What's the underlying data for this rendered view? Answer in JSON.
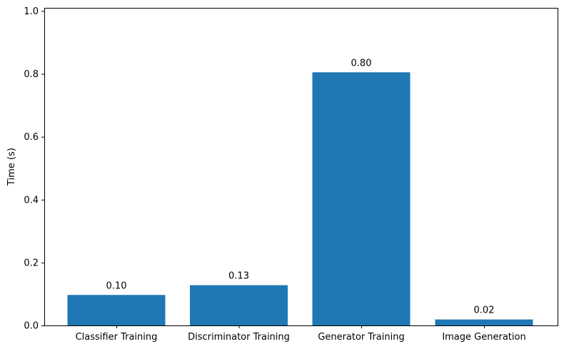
{
  "chart_data": {
    "type": "bar",
    "title": "",
    "xlabel": "",
    "ylabel": "Time (s)",
    "categories": [
      "Classifier Training",
      "Discriminator Training",
      "Generator Training",
      "Image Generation"
    ],
    "values": [
      0.097,
      0.128,
      0.805,
      0.019
    ],
    "data_labels": [
      "0.10",
      "0.13",
      "0.80",
      "0.02"
    ],
    "ylim": [
      0,
      1.01
    ],
    "yticks": [
      0.0,
      0.2,
      0.4,
      0.6,
      0.8,
      1.0
    ],
    "ytick_labels": [
      "0.0",
      "0.2",
      "0.4",
      "0.6",
      "0.8",
      "1.0"
    ],
    "grid": false,
    "legend": "none",
    "bar_color": "#1f77b4"
  }
}
